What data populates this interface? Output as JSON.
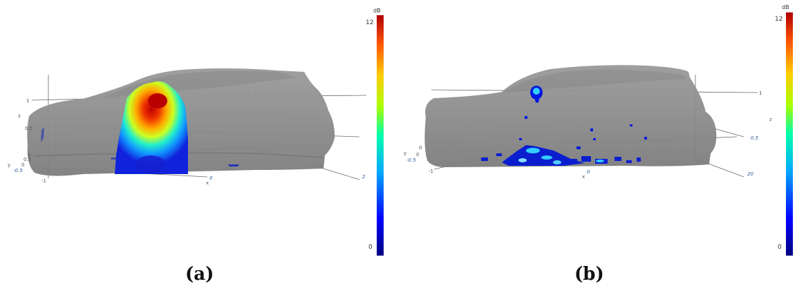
{
  "panels": [
    {
      "caption": "(a)",
      "colorbar": {
        "unit": "dB",
        "max_label": "12",
        "min_label": "0"
      },
      "axis_labels": {
        "x": "x",
        "y": "y",
        "z": "z"
      },
      "ticks": [
        "1",
        "0.5",
        "0",
        "0.5",
        "0",
        "-0.5",
        "2",
        "0",
        "-1"
      ]
    },
    {
      "caption": "(b)",
      "colorbar": {
        "unit": "dB",
        "max_label": "12",
        "min_label": "0"
      },
      "axis_labels": {
        "x": "x",
        "y": "y",
        "z": "z"
      },
      "ticks": [
        "1",
        "0.5",
        "0",
        "0",
        "-0.5",
        "20",
        "0",
        "-1"
      ]
    }
  ],
  "colorscale": [
    "#000080",
    "#0000ff",
    "#00aaff",
    "#00ffaa",
    "#aaff00",
    "#ffcc00",
    "#ff6600",
    "#cc0000"
  ]
}
